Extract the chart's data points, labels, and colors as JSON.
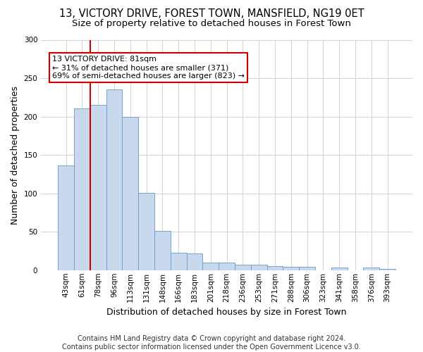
{
  "title": "13, VICTORY DRIVE, FOREST TOWN, MANSFIELD, NG19 0ET",
  "subtitle": "Size of property relative to detached houses in Forest Town",
  "xlabel": "Distribution of detached houses by size in Forest Town",
  "ylabel": "Number of detached properties",
  "footer_line1": "Contains HM Land Registry data © Crown copyright and database right 2024.",
  "footer_line2": "Contains public sector information licensed under the Open Government Licence v3.0.",
  "annotation_line1": "13 VICTORY DRIVE: 81sqm",
  "annotation_line2": "← 31% of detached houses are smaller (371)",
  "annotation_line3": "69% of semi-detached houses are larger (823) →",
  "categories": [
    "43sqm",
    "61sqm",
    "78sqm",
    "96sqm",
    "113sqm",
    "131sqm",
    "148sqm",
    "166sqm",
    "183sqm",
    "201sqm",
    "218sqm",
    "236sqm",
    "253sqm",
    "271sqm",
    "288sqm",
    "306sqm",
    "323sqm",
    "341sqm",
    "358sqm",
    "376sqm",
    "393sqm"
  ],
  "values": [
    136,
    211,
    215,
    235,
    200,
    101,
    51,
    23,
    22,
    10,
    10,
    7,
    7,
    5,
    4,
    4,
    0,
    3,
    0,
    3,
    2
  ],
  "bar_color": "#c8d9ed",
  "bar_edge_color": "#6699cc",
  "vline_color": "#cc0000",
  "vline_bar_index": 2,
  "ylim": [
    0,
    300
  ],
  "yticks": [
    0,
    50,
    100,
    150,
    200,
    250,
    300
  ],
  "background_color": "#ffffff",
  "grid_color": "#cccccc",
  "annotation_box_color": "#ffffff",
  "annotation_box_edge": "#cc0000",
  "title_fontsize": 10.5,
  "subtitle_fontsize": 9.5,
  "ylabel_fontsize": 9,
  "xlabel_fontsize": 9,
  "tick_fontsize": 7.5,
  "annotation_fontsize": 8,
  "footer_fontsize": 7
}
